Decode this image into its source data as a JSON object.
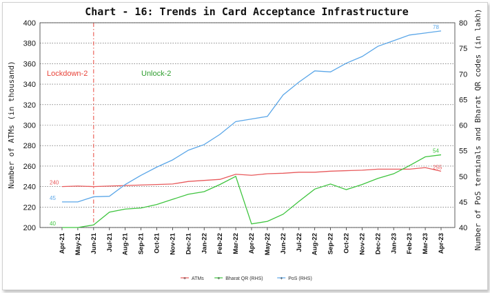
{
  "chart_data": {
    "type": "line",
    "title": "Chart - 16: Trends in Card Acceptance Infrastructure",
    "ylabel": "Number of ATMs (in thousand)",
    "y2label": "Number of PoS terminals and Bharat QR codes (in lakh)",
    "ylim": [
      200,
      400
    ],
    "y2lim": [
      40,
      80
    ],
    "yticks": [
      200,
      220,
      240,
      260,
      280,
      300,
      320,
      340,
      360,
      380,
      400
    ],
    "y2ticks": [
      40,
      45,
      50,
      55,
      60,
      65,
      70,
      75,
      80
    ],
    "categories": [
      "Apr-21",
      "May-21",
      "Jun-21",
      "Jul-21",
      "Aug-21",
      "Sep-21",
      "Oct-21",
      "Nov-21",
      "Dec-21",
      "Jan-22",
      "Feb-22",
      "Mar-22",
      "Apr-22",
      "May-22",
      "Jun-22",
      "Jul-22",
      "Aug-22",
      "Sep-22",
      "Oct-22",
      "Nov-22",
      "Dec-22",
      "Jan-23",
      "Feb-23",
      "Mar-23",
      "Apr-23"
    ],
    "grid": true,
    "legend_position": "bottom",
    "series": [
      {
        "name": "ATMs",
        "axis": "left",
        "color": "#e8595b",
        "values": [
          240,
          240.5,
          240,
          240.5,
          241,
          241.5,
          242,
          242.5,
          245,
          246,
          247,
          252,
          251,
          252.5,
          253,
          254,
          254,
          255,
          255.5,
          256,
          257,
          257,
          257,
          258.5,
          255
        ]
      },
      {
        "name": "Bharat QR (RHS)",
        "axis": "right",
        "color": "#3ec43e",
        "values": [
          40,
          40,
          40.5,
          43,
          43.6,
          43.8,
          44.5,
          45.5,
          46.5,
          47,
          48.4,
          50,
          40.7,
          41.2,
          42.6,
          45.1,
          47.5,
          48.5,
          47.4,
          48.4,
          49.6,
          50.5,
          52.1,
          53.8,
          54.2
        ]
      },
      {
        "name": "PoS (RHS)",
        "axis": "right",
        "color": "#5aa6e8",
        "values": [
          45,
          45,
          46,
          46.1,
          48.4,
          50.2,
          51.8,
          53.2,
          55.1,
          56.2,
          58.2,
          60.7,
          61.2,
          61.7,
          65.9,
          68.4,
          70.6,
          70.4,
          72.1,
          73.4,
          75.4,
          76.5,
          77.6,
          78,
          78.4
        ]
      }
    ],
    "data_labels": [
      {
        "series": "ATMs",
        "index": 0,
        "text": "240"
      },
      {
        "series": "ATMs",
        "index": 24,
        "text": "255"
      },
      {
        "series": "Bharat QR (RHS)",
        "index": 0,
        "text": "40"
      },
      {
        "series": "Bharat QR (RHS)",
        "index": 24,
        "text": "54"
      },
      {
        "series": "PoS (RHS)",
        "index": 0,
        "text": "45"
      },
      {
        "series": "PoS (RHS)",
        "index": 24,
        "text": "78"
      }
    ],
    "annotations": [
      {
        "text": "Lockdown-2",
        "color": "#e8443a"
      },
      {
        "text": "Unlock-2",
        "color": "#2f9e2f"
      }
    ],
    "vline": {
      "at_category": "Jun-21",
      "color": "#e8443a"
    }
  }
}
